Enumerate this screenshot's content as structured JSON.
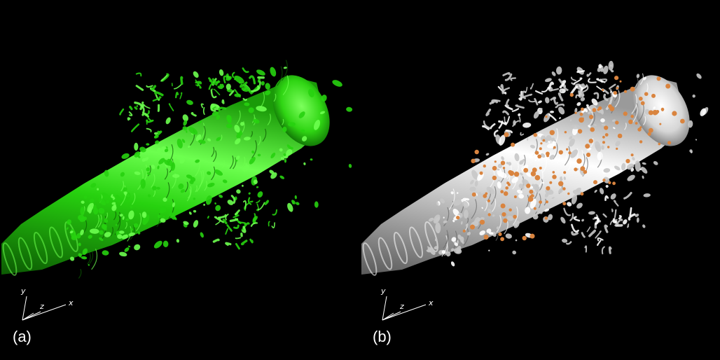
{
  "panels": [
    {
      "id": "a",
      "label": "(a)",
      "surface_color": "#27d20f",
      "surface_highlight": "#6dff4f",
      "surface_shadow": "#0c5a03",
      "particles": false
    },
    {
      "id": "b",
      "label": "(b)",
      "surface_color": "#c8c8c8",
      "surface_highlight": "#ffffff",
      "surface_shadow": "#6a6a6a",
      "particles": true,
      "particle_color": "#d9843f"
    }
  ],
  "axes": {
    "x_label": "x",
    "y_label": "y",
    "z_label": "z"
  }
}
